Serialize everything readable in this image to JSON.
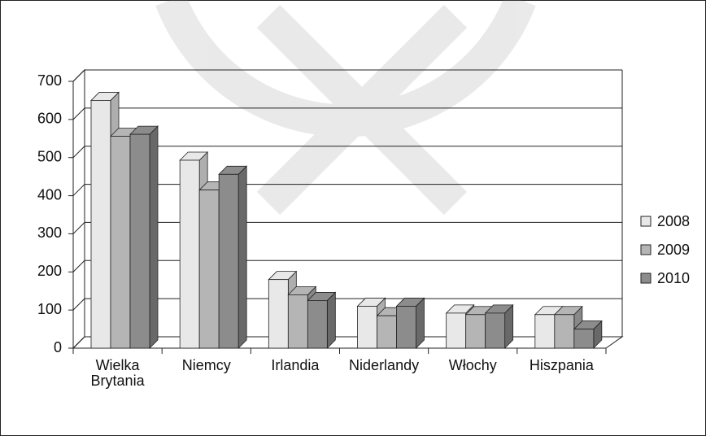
{
  "chart_data": {
    "type": "bar3d",
    "categories": [
      "Wielka Brytania",
      "Niemcy",
      "Irlandia",
      "Niderlandy",
      "Włochy",
      "Hiszpania"
    ],
    "series": [
      {
        "name": "2008",
        "color": "#e8e8e8",
        "values": [
          650,
          493,
          180,
          110,
          92,
          88
        ]
      },
      {
        "name": "2009",
        "color": "#b5b5b5",
        "values": [
          556,
          415,
          140,
          85,
          88,
          88
        ]
      },
      {
        "name": "2010",
        "color": "#8c8c8c",
        "values": [
          561,
          456,
          125,
          110,
          92,
          50
        ]
      }
    ],
    "ylim": [
      0,
      700
    ],
    "yticks": [
      0,
      100,
      200,
      300,
      400,
      500,
      600,
      700
    ],
    "grid": true,
    "legend": "right"
  }
}
